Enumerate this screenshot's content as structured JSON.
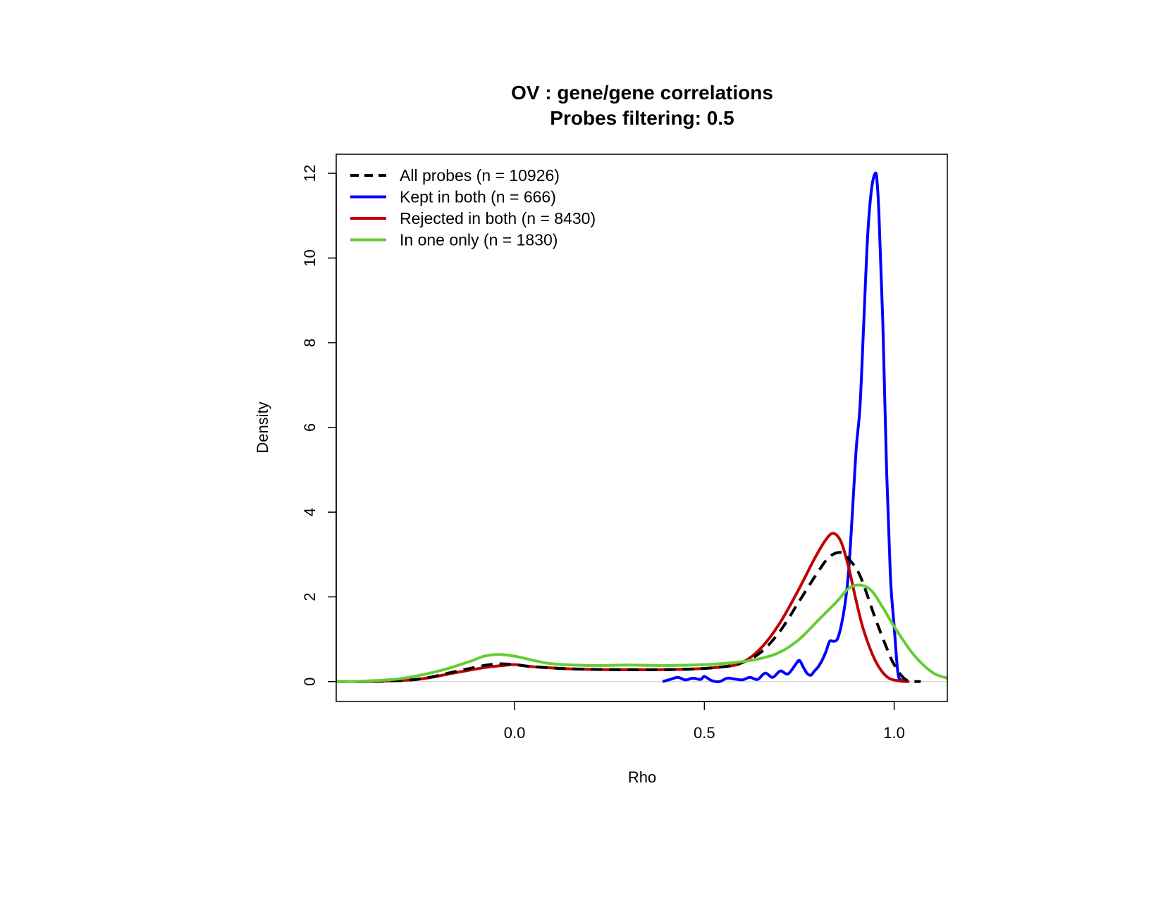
{
  "chart_data": {
    "type": "line",
    "title": "OV : gene/gene correlations",
    "subtitle": "Probes filtering: 0.5",
    "xlabel": "Rho",
    "ylabel": "Density",
    "xlim": [
      -0.47,
      1.14
    ],
    "ylim": [
      -0.47,
      12.45
    ],
    "x_ticks": [
      0.0,
      0.5,
      1.0
    ],
    "x_tick_labels": [
      "0.0",
      "0.5",
      "1.0"
    ],
    "y_ticks": [
      0,
      2,
      4,
      6,
      8,
      10,
      12
    ],
    "y_tick_labels": [
      "0",
      "2",
      "4",
      "6",
      "8",
      "10",
      "12"
    ],
    "zero_line": true,
    "grid": false,
    "legend_position": "top-left",
    "series": [
      {
        "name": "All probes (n = 10926)",
        "color": "#000000",
        "style": "dashed",
        "points": [
          [
            -0.47,
            0
          ],
          [
            -0.35,
            0.01
          ],
          [
            -0.25,
            0.06
          ],
          [
            -0.15,
            0.25
          ],
          [
            -0.08,
            0.38
          ],
          [
            -0.04,
            0.42
          ],
          [
            0.0,
            0.4
          ],
          [
            0.05,
            0.35
          ],
          [
            0.15,
            0.3
          ],
          [
            0.3,
            0.28
          ],
          [
            0.45,
            0.29
          ],
          [
            0.55,
            0.35
          ],
          [
            0.6,
            0.45
          ],
          [
            0.65,
            0.7
          ],
          [
            0.7,
            1.2
          ],
          [
            0.75,
            1.9
          ],
          [
            0.8,
            2.6
          ],
          [
            0.83,
            2.95
          ],
          [
            0.86,
            3.05
          ],
          [
            0.88,
            2.9
          ],
          [
            0.91,
            2.5
          ],
          [
            0.95,
            1.5
          ],
          [
            0.98,
            0.8
          ],
          [
            1.0,
            0.4
          ],
          [
            1.03,
            0.05
          ],
          [
            1.07,
            0
          ]
        ]
      },
      {
        "name": "Kept in both (n = 666)",
        "color": "#0000ff",
        "style": "solid",
        "points": [
          [
            0.39,
            0.0
          ],
          [
            0.41,
            0.05
          ],
          [
            0.43,
            0.1
          ],
          [
            0.45,
            0.04
          ],
          [
            0.47,
            0.08
          ],
          [
            0.49,
            0.05
          ],
          [
            0.5,
            0.12
          ],
          [
            0.52,
            0.02
          ],
          [
            0.54,
            0.0
          ],
          [
            0.56,
            0.08
          ],
          [
            0.58,
            0.06
          ],
          [
            0.6,
            0.04
          ],
          [
            0.62,
            0.1
          ],
          [
            0.64,
            0.05
          ],
          [
            0.66,
            0.2
          ],
          [
            0.68,
            0.1
          ],
          [
            0.7,
            0.25
          ],
          [
            0.72,
            0.18
          ],
          [
            0.74,
            0.4
          ],
          [
            0.75,
            0.5
          ],
          [
            0.76,
            0.35
          ],
          [
            0.77,
            0.2
          ],
          [
            0.78,
            0.15
          ],
          [
            0.79,
            0.25
          ],
          [
            0.8,
            0.35
          ],
          [
            0.81,
            0.5
          ],
          [
            0.82,
            0.7
          ],
          [
            0.83,
            0.95
          ],
          [
            0.84,
            0.95
          ],
          [
            0.85,
            1.0
          ],
          [
            0.86,
            1.3
          ],
          [
            0.87,
            1.8
          ],
          [
            0.88,
            2.6
          ],
          [
            0.89,
            4.0
          ],
          [
            0.9,
            5.5
          ],
          [
            0.91,
            6.5
          ],
          [
            0.92,
            8.5
          ],
          [
            0.93,
            10.5
          ],
          [
            0.94,
            11.6
          ],
          [
            0.95,
            12.0
          ],
          [
            0.955,
            11.8
          ],
          [
            0.96,
            11.0
          ],
          [
            0.97,
            8.5
          ],
          [
            0.98,
            5.0
          ],
          [
            0.99,
            2.5
          ],
          [
            1.0,
            1.3
          ],
          [
            1.01,
            0.2
          ],
          [
            1.02,
            0.03
          ],
          [
            1.03,
            0.0
          ]
        ]
      },
      {
        "name": "Rejected in both (n = 8430)",
        "color": "#c00000",
        "style": "solid",
        "points": [
          [
            -0.42,
            0
          ],
          [
            -0.35,
            0.01
          ],
          [
            -0.25,
            0.06
          ],
          [
            -0.15,
            0.22
          ],
          [
            -0.08,
            0.33
          ],
          [
            -0.03,
            0.38
          ],
          [
            0.0,
            0.4
          ],
          [
            0.05,
            0.35
          ],
          [
            0.15,
            0.3
          ],
          [
            0.3,
            0.28
          ],
          [
            0.45,
            0.29
          ],
          [
            0.55,
            0.35
          ],
          [
            0.6,
            0.45
          ],
          [
            0.65,
            0.8
          ],
          [
            0.7,
            1.4
          ],
          [
            0.75,
            2.2
          ],
          [
            0.79,
            2.9
          ],
          [
            0.82,
            3.35
          ],
          [
            0.84,
            3.5
          ],
          [
            0.86,
            3.3
          ],
          [
            0.88,
            2.7
          ],
          [
            0.9,
            1.9
          ],
          [
            0.92,
            1.2
          ],
          [
            0.95,
            0.5
          ],
          [
            0.98,
            0.12
          ],
          [
            1.01,
            0.02
          ],
          [
            1.04,
            0
          ]
        ]
      },
      {
        "name": "In one only (n = 1830)",
        "color": "#66cc33",
        "style": "solid",
        "points": [
          [
            -0.47,
            0
          ],
          [
            -0.4,
            0.01
          ],
          [
            -0.3,
            0.07
          ],
          [
            -0.2,
            0.25
          ],
          [
            -0.12,
            0.47
          ],
          [
            -0.08,
            0.6
          ],
          [
            -0.04,
            0.64
          ],
          [
            0.0,
            0.6
          ],
          [
            0.05,
            0.5
          ],
          [
            0.1,
            0.42
          ],
          [
            0.2,
            0.38
          ],
          [
            0.3,
            0.39
          ],
          [
            0.4,
            0.38
          ],
          [
            0.5,
            0.4
          ],
          [
            0.58,
            0.45
          ],
          [
            0.65,
            0.55
          ],
          [
            0.7,
            0.7
          ],
          [
            0.75,
            1.0
          ],
          [
            0.8,
            1.45
          ],
          [
            0.85,
            1.9
          ],
          [
            0.88,
            2.2
          ],
          [
            0.91,
            2.28
          ],
          [
            0.94,
            2.15
          ],
          [
            0.97,
            1.75
          ],
          [
            1.0,
            1.3
          ],
          [
            1.05,
            0.65
          ],
          [
            1.1,
            0.22
          ],
          [
            1.14,
            0.08
          ]
        ]
      }
    ]
  }
}
